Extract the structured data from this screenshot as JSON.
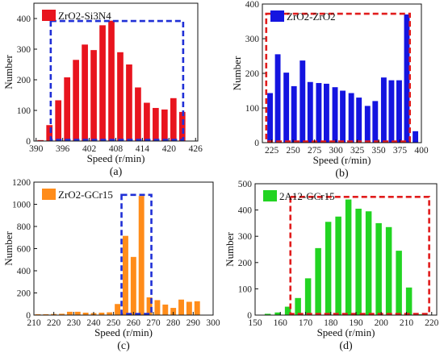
{
  "chart_data": [
    {
      "type": "bar",
      "subplot_label": "(a)",
      "legend": "ZrO2-Si3N4",
      "color": "#e8141e",
      "box_color": "#1f2fd6",
      "xlabel": "Speed (r/min)",
      "ylabel": "Number",
      "xlim": [
        389.5,
        426.5
      ],
      "ylim": [
        0,
        450
      ],
      "xticks": [
        390,
        396,
        402,
        408,
        414,
        420,
        426
      ],
      "yticks": [
        0,
        100,
        200,
        300,
        400
      ],
      "bar_width": 1.4,
      "x": [
        391,
        393,
        395,
        397,
        399,
        401,
        403,
        405,
        407,
        409,
        411,
        413,
        415,
        417,
        419,
        421,
        423
      ],
      "values": [
        3,
        52,
        133,
        208,
        265,
        315,
        297,
        378,
        393,
        290,
        250,
        175,
        125,
        108,
        103,
        140,
        95
      ],
      "box_x": [
        393.3,
        423.2
      ],
      "box_y": [
        0,
        392
      ]
    },
    {
      "type": "bar",
      "subplot_label": "(b)",
      "legend": "ZrO2-ZrO2",
      "color": "#1414e0",
      "box_color": "#e11c1c",
      "xlabel": "Speed (r/min)",
      "ylabel": "Number",
      "xlim": [
        214,
        400
      ],
      "ylim": [
        0,
        400
      ],
      "xticks": [
        225,
        250,
        275,
        300,
        325,
        350,
        375,
        400
      ],
      "yticks": [
        0,
        100,
        200,
        300,
        400
      ],
      "bar_width": 6.5,
      "x": [
        223,
        232,
        242,
        251,
        261,
        270,
        280,
        289,
        299,
        308,
        318,
        327,
        337,
        346,
        356,
        365,
        374,
        383,
        393
      ],
      "values": [
        143,
        255,
        202,
        163,
        237,
        175,
        172,
        170,
        160,
        150,
        143,
        130,
        106,
        120,
        188,
        180,
        180,
        370,
        33
      ],
      "box_x": [
        218.5,
        386.5
      ],
      "box_y": [
        0,
        372
      ]
    },
    {
      "type": "bar",
      "subplot_label": "(c)",
      "legend": "ZrO2-GCr15",
      "color": "#ff8c1a",
      "box_color": "#1f2fd6",
      "xlabel": "Speed (r/min)",
      "ylabel": "Number",
      "xlim": [
        210,
        300
      ],
      "ylim": [
        0,
        1200
      ],
      "xticks": [
        210,
        220,
        230,
        240,
        250,
        260,
        270,
        280,
        290,
        300
      ],
      "yticks": [
        0,
        200,
        400,
        600,
        800,
        1000,
        1200
      ],
      "bar_width": 2.8,
      "x": [
        212,
        216,
        220,
        224,
        228,
        232,
        236,
        240,
        244,
        248,
        252,
        256,
        260,
        264,
        268,
        272,
        276,
        280,
        284,
        288,
        292
      ],
      "values": [
        8,
        8,
        10,
        12,
        30,
        30,
        22,
        18,
        22,
        25,
        100,
        715,
        525,
        1075,
        160,
        135,
        95,
        65,
        140,
        120,
        125
      ],
      "box_x": [
        254,
        269
      ],
      "box_y": [
        0,
        1085
      ]
    },
    {
      "type": "bar",
      "subplot_label": "(d)",
      "legend": "2A12-GCr15",
      "color": "#22d422",
      "box_color": "#e11c1c",
      "xlabel": "Speed (r/min)",
      "ylabel": "Number",
      "xlim": [
        150,
        222
      ],
      "ylim": [
        0,
        500
      ],
      "xticks": [
        150,
        160,
        170,
        180,
        190,
        200,
        210,
        220
      ],
      "yticks": [
        0,
        100,
        200,
        300,
        400,
        500
      ],
      "bar_width": 2.4,
      "x": [
        155,
        159,
        163,
        167,
        171,
        175,
        179,
        183,
        187,
        191,
        195,
        199,
        203,
        207,
        211,
        215
      ],
      "values": [
        5,
        10,
        32,
        65,
        140,
        255,
        355,
        375,
        440,
        405,
        395,
        350,
        335,
        245,
        105,
        3
      ],
      "box_x": [
        164,
        219
      ],
      "box_y": [
        0,
        450
      ]
    }
  ]
}
